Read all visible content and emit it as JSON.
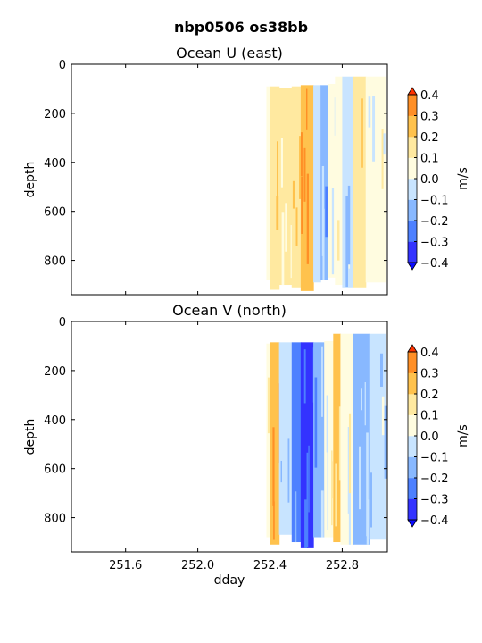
{
  "suptitle": "nbp0506 os38bb",
  "chart_data": [
    {
      "type": "heatmap",
      "title": "Ocean U (east)",
      "xlabel": "",
      "ylabel": "depth",
      "xlim": [
        251.3,
        253.05
      ],
      "ylim": [
        940,
        0
      ],
      "y_inverted": true,
      "yticks": [
        0,
        200,
        400,
        600,
        800
      ],
      "ytick_labels": [
        "0",
        "200",
        "400",
        "600",
        "800"
      ],
      "xticks": [
        251.6,
        252.0,
        252.4,
        252.8
      ],
      "xtick_labels": [],
      "data_x_range": [
        252.38,
        253.04
      ],
      "data_depth_range": [
        50,
        925
      ],
      "bands": [
        {
          "x0": 252.38,
          "x1": 252.4,
          "depth_top": 90,
          "depth_bottom": 880,
          "value": 0.05
        },
        {
          "x0": 252.4,
          "x1": 252.45,
          "depth_top": 90,
          "depth_bottom": 920,
          "value": 0.15
        },
        {
          "x0": 252.45,
          "x1": 252.52,
          "depth_top": 95,
          "depth_bottom": 900,
          "value": 0.12
        },
        {
          "x0": 252.52,
          "x1": 252.57,
          "depth_top": 90,
          "depth_bottom": 910,
          "value": 0.2
        },
        {
          "x0": 252.57,
          "x1": 252.64,
          "depth_top": 85,
          "depth_bottom": 925,
          "value": 0.27
        },
        {
          "x0": 252.64,
          "x1": 252.68,
          "depth_top": 85,
          "depth_bottom": 890,
          "value": -0.05
        },
        {
          "x0": 252.68,
          "x1": 252.72,
          "depth_top": 85,
          "depth_bottom": 880,
          "value": -0.12
        },
        {
          "x0": 252.72,
          "x1": 252.76,
          "depth_top": 80,
          "depth_bottom": 870,
          "value": 0.05
        },
        {
          "x0": 252.76,
          "x1": 252.8,
          "depth_top": 50,
          "depth_bottom": 900,
          "value": 0.08
        },
        {
          "x0": 252.8,
          "x1": 252.86,
          "depth_top": 50,
          "depth_bottom": 910,
          "value": -0.07
        },
        {
          "x0": 252.86,
          "x1": 252.93,
          "depth_top": 50,
          "depth_bottom": 910,
          "value": 0.16
        },
        {
          "x0": 252.93,
          "x1": 253.04,
          "depth_top": 50,
          "depth_bottom": 890,
          "value": 0.05
        }
      ],
      "colorbar": {
        "label": "m/s",
        "levels": [
          -0.4,
          -0.3,
          -0.2,
          -0.1,
          0.0,
          0.1,
          0.2,
          0.3,
          0.4
        ],
        "tick_labels": [
          "−0.4",
          "−0.3",
          "−0.2",
          "−0.1",
          "0.0",
          "0.1",
          "0.2",
          "0.3",
          "0.4"
        ],
        "colors": [
          "#3333ff",
          "#4d80ff",
          "#88b8ff",
          "#c8e4ff",
          "#fffce0",
          "#ffe9a0",
          "#ffc24d",
          "#ff8f26",
          "#e6550d",
          "#0a0aff",
          "#ff3300"
        ]
      }
    },
    {
      "type": "heatmap",
      "title": "Ocean V (north)",
      "xlabel": "dday",
      "ylabel": "depth",
      "xlim": [
        251.3,
        253.05
      ],
      "ylim": [
        940,
        0
      ],
      "y_inverted": true,
      "yticks": [
        0,
        200,
        400,
        600,
        800
      ],
      "ytick_labels": [
        "0",
        "200",
        "400",
        "600",
        "800"
      ],
      "xticks": [
        251.6,
        252.0,
        252.4,
        252.8
      ],
      "xtick_labels": [
        "251.6",
        "252.0",
        "252.4",
        "252.8"
      ],
      "data_x_range": [
        252.38,
        253.04
      ],
      "data_depth_range": [
        50,
        925
      ],
      "bands": [
        {
          "x0": 252.38,
          "x1": 252.4,
          "depth_top": 90,
          "depth_bottom": 880,
          "value": 0.1
        },
        {
          "x0": 252.4,
          "x1": 252.45,
          "depth_top": 85,
          "depth_bottom": 910,
          "value": 0.3
        },
        {
          "x0": 252.45,
          "x1": 252.52,
          "depth_top": 85,
          "depth_bottom": 870,
          "value": -0.08
        },
        {
          "x0": 252.52,
          "x1": 252.57,
          "depth_top": 85,
          "depth_bottom": 900,
          "value": -0.2
        },
        {
          "x0": 252.57,
          "x1": 252.64,
          "depth_top": 85,
          "depth_bottom": 925,
          "value": -0.33
        },
        {
          "x0": 252.64,
          "x1": 252.7,
          "depth_top": 85,
          "depth_bottom": 880,
          "value": -0.15
        },
        {
          "x0": 252.7,
          "x1": 252.75,
          "depth_top": 80,
          "depth_bottom": 880,
          "value": 0.08
        },
        {
          "x0": 252.75,
          "x1": 252.79,
          "depth_top": 50,
          "depth_bottom": 900,
          "value": 0.22
        },
        {
          "x0": 252.79,
          "x1": 252.86,
          "depth_top": 50,
          "depth_bottom": 910,
          "value": 0.04
        },
        {
          "x0": 252.86,
          "x1": 252.95,
          "depth_top": 50,
          "depth_bottom": 910,
          "value": -0.12
        },
        {
          "x0": 252.95,
          "x1": 253.04,
          "depth_top": 50,
          "depth_bottom": 890,
          "value": -0.05
        }
      ],
      "colorbar": {
        "label": "m/s",
        "levels": [
          -0.4,
          -0.3,
          -0.2,
          -0.1,
          0.0,
          0.1,
          0.2,
          0.3,
          0.4
        ],
        "tick_labels": [
          "−0.4",
          "−0.3",
          "−0.2",
          "−0.1",
          "0.0",
          "0.1",
          "0.2",
          "0.3",
          "0.4"
        ],
        "colors": [
          "#3333ff",
          "#4d80ff",
          "#88b8ff",
          "#c8e4ff",
          "#fffce0",
          "#ffe9a0",
          "#ffc24d",
          "#ff8f26",
          "#e6550d",
          "#0a0aff",
          "#ff3300"
        ]
      }
    }
  ]
}
